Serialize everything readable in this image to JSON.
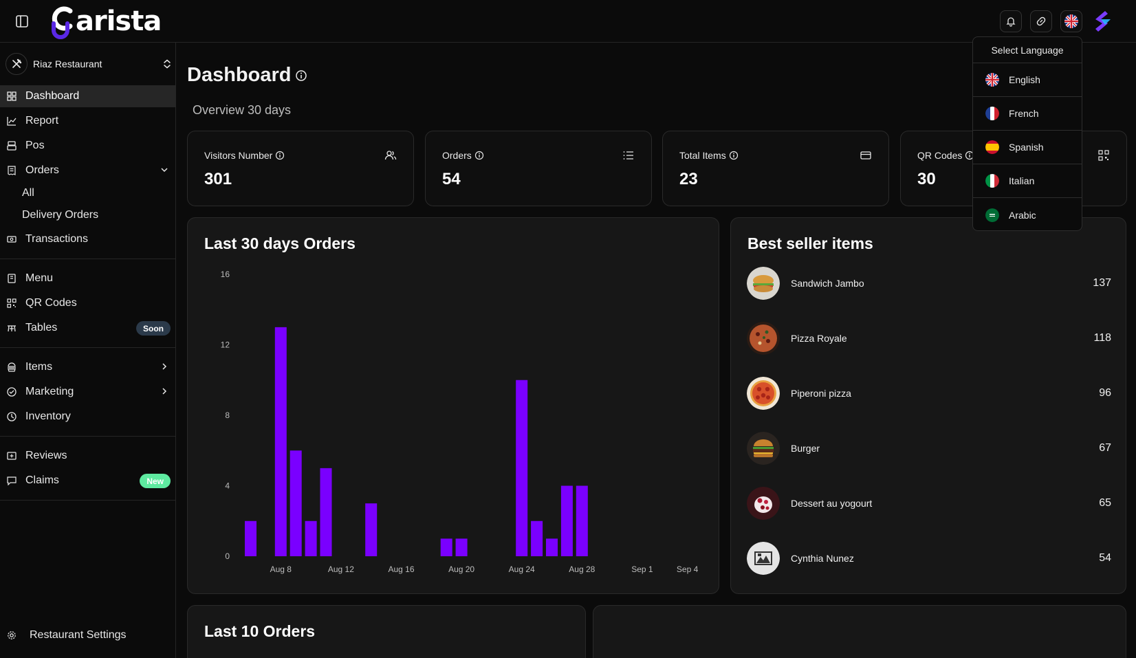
{
  "app": {
    "logo_text": "arista"
  },
  "sidebar": {
    "restaurant": "Riaz Restaurant",
    "items": [
      {
        "key": "dashboard",
        "label": "Dashboard",
        "icon": "grid-icon"
      },
      {
        "key": "report",
        "label": "Report",
        "icon": "chart-line-icon"
      },
      {
        "key": "pos",
        "label": "Pos",
        "icon": "pos-icon"
      },
      {
        "key": "orders",
        "label": "Orders",
        "icon": "receipt-icon"
      },
      {
        "key": "transactions",
        "label": "Transactions",
        "icon": "cash-icon"
      },
      {
        "key": "menu",
        "label": "Menu",
        "icon": "book-icon"
      },
      {
        "key": "qr",
        "label": "QR Codes",
        "icon": "qr-icon"
      },
      {
        "key": "tables",
        "label": "Tables",
        "icon": "table-icon"
      },
      {
        "key": "items",
        "label": "Items",
        "icon": "items-icon"
      },
      {
        "key": "marketing",
        "label": "Marketing",
        "icon": "marketing-icon"
      },
      {
        "key": "inventory",
        "label": "Inventory",
        "icon": "inventory-icon"
      },
      {
        "key": "reviews",
        "label": "Reviews",
        "icon": "review-icon"
      },
      {
        "key": "claims",
        "label": "Claims",
        "icon": "chat-icon"
      }
    ],
    "orders_sub": [
      "All",
      "Delivery Orders"
    ],
    "badges": {
      "tables": "Soon",
      "claims": "New"
    },
    "settings_label": "Restaurant Settings"
  },
  "main": {
    "title": "Dashboard",
    "subtitle": "Overview 30 days",
    "stats": [
      {
        "label": "Visitors Number",
        "value": "301",
        "icon": "users-icon"
      },
      {
        "label": "Orders",
        "value": "54",
        "icon": "list-icon"
      },
      {
        "label": "Total Items",
        "value": "23",
        "icon": "card-icon"
      },
      {
        "label": "QR Codes",
        "value": "30",
        "icon": "qr-icon"
      }
    ],
    "chart_title": "Last 30 days Orders",
    "best_title": "Best seller items",
    "best_items": [
      {
        "name": "Sandwich Jambo",
        "count": "137"
      },
      {
        "name": "Pizza Royale",
        "count": "118"
      },
      {
        "name": "Piperoni pizza",
        "count": "96"
      },
      {
        "name": "Burger",
        "count": "67"
      },
      {
        "name": "Dessert au yogourt",
        "count": "65"
      },
      {
        "name": "Cynthia Nunez",
        "count": "54"
      }
    ],
    "last_orders_title": "Last 10 Orders"
  },
  "language_menu": {
    "header": "Select Language",
    "options": [
      "English",
      "French",
      "Spanish",
      "Italian",
      "Arabic"
    ]
  },
  "colors": {
    "bar": "#7a00ff",
    "accent_new": "#5eeaa0"
  },
  "chart_data": {
    "type": "bar",
    "x": [
      "Aug 6",
      "Aug 7",
      "Aug 8",
      "Aug 9",
      "Aug 10",
      "Aug 11",
      "Aug 12",
      "Aug 13",
      "Aug 14",
      "Aug 15",
      "Aug 16",
      "Aug 17",
      "Aug 18",
      "Aug 19",
      "Aug 20",
      "Aug 21",
      "Aug 22",
      "Aug 23",
      "Aug 24",
      "Aug 25",
      "Aug 26",
      "Aug 27",
      "Aug 28",
      "Aug 29",
      "Aug 30",
      "Aug 31",
      "Sep 1",
      "Sep 2",
      "Sep 3",
      "Sep 4"
    ],
    "values": [
      2,
      0,
      13,
      6,
      2,
      5,
      0,
      0,
      3,
      0,
      0,
      0,
      0,
      1,
      1,
      0,
      0,
      0,
      10,
      2,
      1,
      4,
      4,
      0,
      0,
      0,
      0,
      0,
      0,
      0
    ],
    "xtick_labels": [
      "Aug 8",
      "Aug 12",
      "Aug 16",
      "Aug 20",
      "Aug 24",
      "Aug 28",
      "Sep 1",
      "Sep 4"
    ],
    "yticks": [
      0,
      4,
      8,
      12,
      16
    ],
    "ylim": [
      0,
      16
    ],
    "grid": false,
    "legend": "none"
  }
}
